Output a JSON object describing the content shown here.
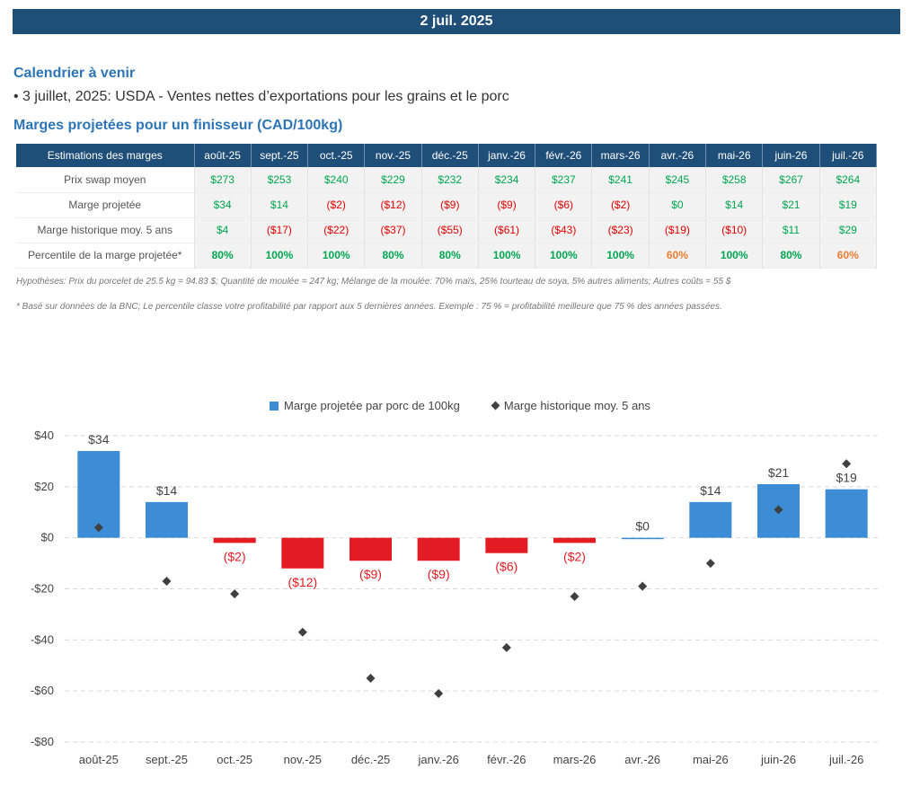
{
  "header": {
    "date": "2 juil. 2025"
  },
  "upcoming": {
    "title": "Calendrier à venir",
    "items": [
      "• 3 juillet, 2025: USDA - Ventes nettes d’exportations pour les grains et le porc"
    ]
  },
  "margins_section": {
    "title": "Marges projetées pour un finisseur (CAD/100kg)"
  },
  "table": {
    "corner_header": "Estimations des marges",
    "months": [
      "août-25",
      "sept.-25",
      "oct.-25",
      "nov.-25",
      "déc.-25",
      "janv.-26",
      "févr.-26",
      "mars-26",
      "avr.-26",
      "mai-26",
      "juin-26",
      "juil.-26"
    ],
    "rows": [
      {
        "label": "Prix swap moyen",
        "values": [
          "$273",
          "$253",
          "$240",
          "$229",
          "$232",
          "$234",
          "$237",
          "$241",
          "$245",
          "$258",
          "$267",
          "$264"
        ],
        "styles": [
          "pos",
          "pos",
          "pos",
          "pos",
          "pos",
          "pos",
          "pos",
          "pos",
          "pos",
          "pos",
          "pos",
          "pos"
        ]
      },
      {
        "label": "Marge projetée",
        "values": [
          "$34",
          "$14",
          "($2)",
          "($12)",
          "($9)",
          "($9)",
          "($6)",
          "($2)",
          "$0",
          "$14",
          "$21",
          "$19"
        ],
        "styles": [
          "pos",
          "pos",
          "neg",
          "neg",
          "neg",
          "neg",
          "neg",
          "neg",
          "pos",
          "pos",
          "pos",
          "pos"
        ]
      },
      {
        "label": "Marge historique moy. 5 ans",
        "values": [
          "$4",
          "($17)",
          "($22)",
          "($37)",
          "($55)",
          "($61)",
          "($43)",
          "($23)",
          "($19)",
          "($10)",
          "$11",
          "$29"
        ],
        "styles": [
          "pos",
          "neg",
          "neg",
          "neg",
          "neg",
          "neg",
          "neg",
          "neg",
          "neg",
          "neg",
          "pos",
          "pos"
        ]
      },
      {
        "label": "Percentile de la marge projetée*",
        "values": [
          "80%",
          "100%",
          "100%",
          "80%",
          "80%",
          "100%",
          "100%",
          "100%",
          "60%",
          "100%",
          "80%",
          "60%"
        ],
        "styles": [
          "pct-green",
          "pct-green",
          "pct-green",
          "pct-green",
          "pct-green",
          "pct-green",
          "pct-green",
          "pct-green",
          "pct-orange",
          "pct-green",
          "pct-green",
          "pct-orange"
        ]
      }
    ]
  },
  "notes": {
    "hypotheses": "Hypothèses: Prix du porcelet de 25.5 kg = 94.83 $; Quantité de moulée = 247 kg; Mélange de la moulée: 70% maïs, 25% tourteau de soya, 5% autres aliments; Autres coûts = 55 $",
    "footnote": "* Basé sur données de la BNC; Le percentile classe votre profitabilité par rapport aux 5 dernières années. Exemple : 75 % = profitabilité meilleure que 75 % des années passées."
  },
  "chart_data": {
    "type": "bar",
    "categories": [
      "août-25",
      "sept.-25",
      "oct.-25",
      "nov.-25",
      "déc.-25",
      "janv.-26",
      "févr.-26",
      "mars-26",
      "avr.-26",
      "mai-26",
      "juin-26",
      "juil.-26"
    ],
    "series": [
      {
        "name": "Marge projetée par porc de 100kg",
        "type": "bar",
        "values": [
          34,
          14,
          -2,
          -12,
          -9,
          -9,
          -6,
          -2,
          0,
          14,
          21,
          19
        ],
        "labels": [
          "$34",
          "$14",
          "($2)",
          "($12)",
          "($9)",
          "($9)",
          "($6)",
          "($2)",
          "$0",
          "$14",
          "$21",
          "$19"
        ]
      },
      {
        "name": "Marge historique moy. 5 ans",
        "type": "scatter",
        "values": [
          4,
          -17,
          -22,
          -37,
          -55,
          -61,
          -43,
          -23,
          -19,
          -10,
          11,
          29
        ]
      }
    ],
    "ylim": [
      -80,
      40
    ],
    "yticks": [
      40,
      20,
      0,
      -20,
      -40,
      -60,
      -80
    ],
    "ytick_labels": [
      "$40",
      "$20",
      "$0",
      "-$20",
      "-$40",
      "-$60",
      "-$80"
    ],
    "grid": true,
    "legend_position": "top",
    "colors": {
      "positive_bar": "#3c8dd5",
      "negative_bar": "#e31b23",
      "marker": "#404040",
      "neg_label": "#e31b23",
      "pos_label": "#444444"
    }
  }
}
